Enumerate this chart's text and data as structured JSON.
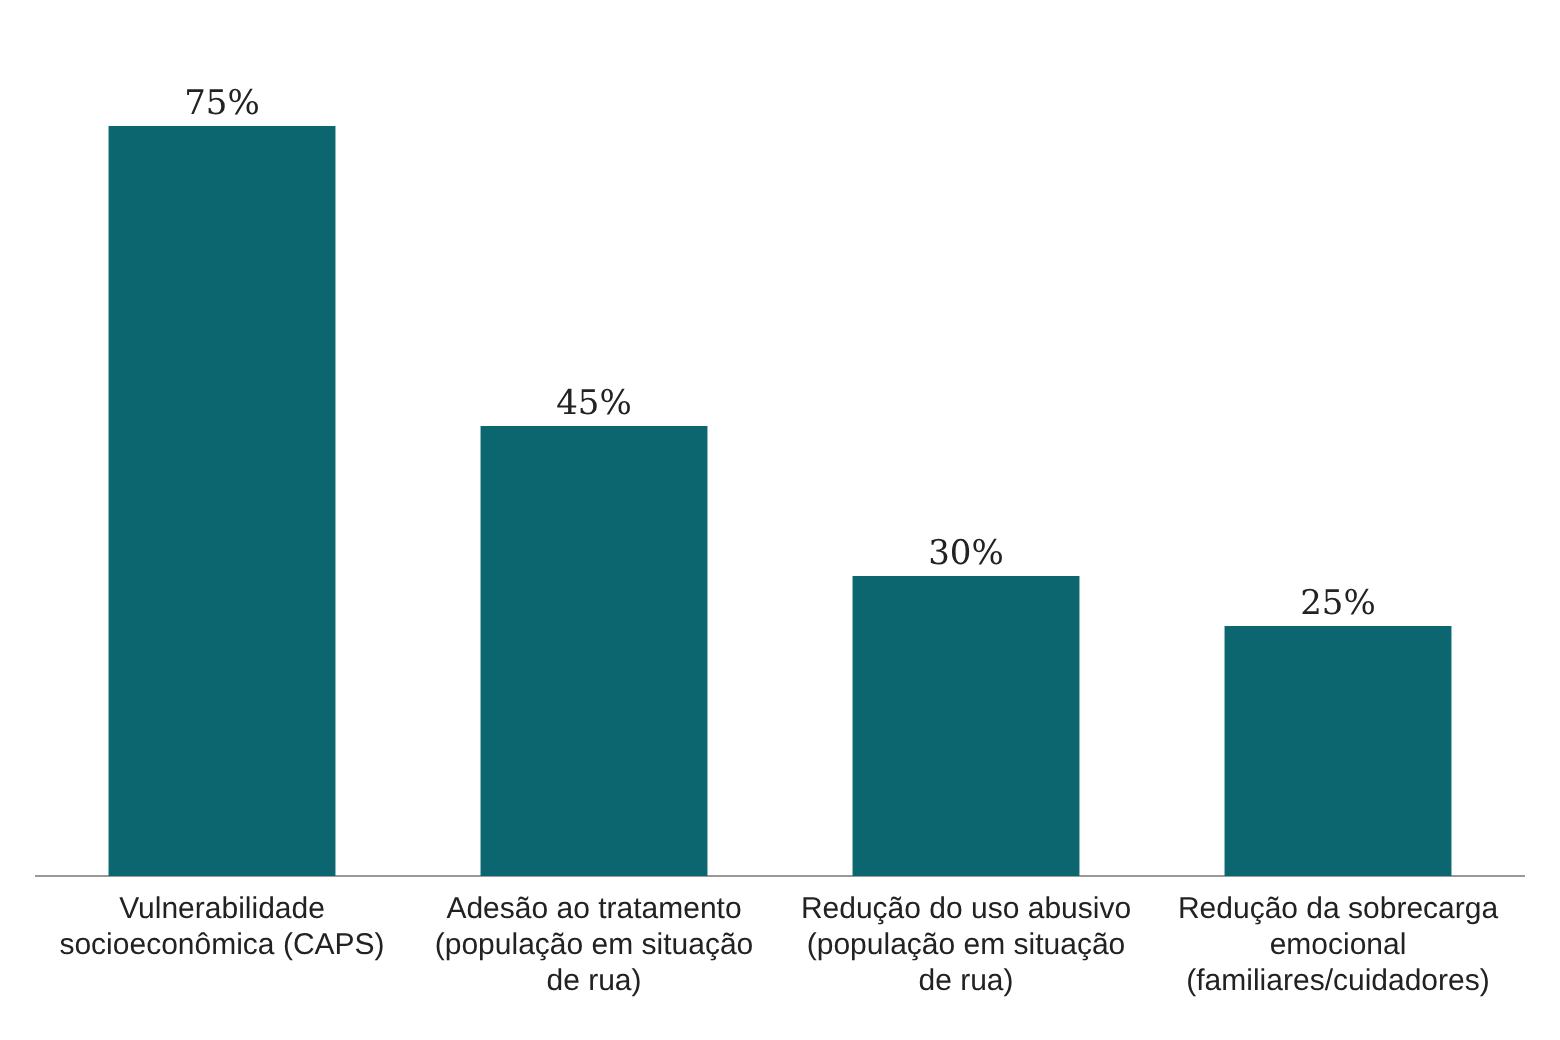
{
  "chart_data": {
    "type": "bar",
    "categories": [
      "Vulnerabilidade socioeconômica (CAPS)",
      "Adesão ao tratamento (população em situação de rua)",
      "Redução do uso abusivo (população em situação de rua)",
      "Redução da sobrecarga emocional (familiares/cuidadores)"
    ],
    "values": [
      75,
      45,
      30,
      25
    ],
    "value_labels": [
      "75%",
      "45%",
      "30%",
      "25%"
    ],
    "color": "#0b6670",
    "grid": false,
    "legend": false
  }
}
